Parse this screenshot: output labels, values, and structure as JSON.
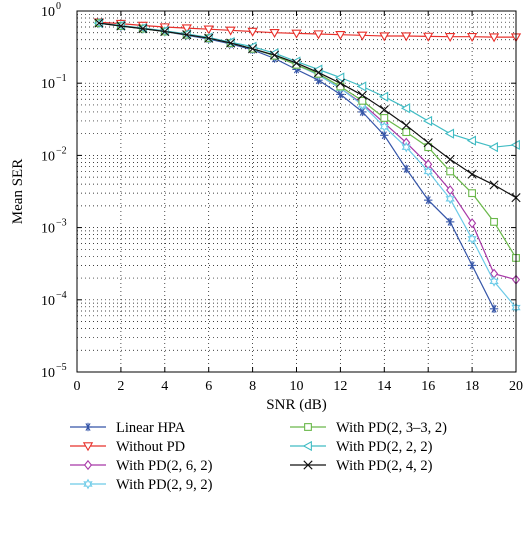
{
  "chart_data": {
    "type": "line",
    "title": "",
    "xlabel": "SNR (dB)",
    "ylabel": "Mean SER",
    "xlim": [
      0,
      20
    ],
    "ylim": [
      1e-05,
      1
    ],
    "yscale": "log",
    "grid": "dotted",
    "legend_placement": "below",
    "x_ticks": [
      0,
      2,
      4,
      6,
      8,
      10,
      12,
      14,
      16,
      18,
      20
    ],
    "y_ticks": [
      {
        "value": 1,
        "exp": "0"
      },
      {
        "value": 0.1,
        "exp": "−1"
      },
      {
        "value": 0.01,
        "exp": "−2"
      },
      {
        "value": 0.001,
        "exp": "−3"
      },
      {
        "value": 0.0001,
        "exp": "−4"
      },
      {
        "value": 1e-05,
        "exp": "−5"
      }
    ],
    "y_tick_base": "10",
    "series": [
      {
        "name": "Linear HPA",
        "color": "#3555a8",
        "marker": "star",
        "x": [
          1,
          2,
          3,
          4,
          5,
          6,
          7,
          8,
          9,
          10,
          11,
          12,
          13,
          14,
          15,
          16,
          17,
          18,
          19
        ],
        "y": [
          0.68,
          0.62,
          0.57,
          0.52,
          0.46,
          0.41,
          0.35,
          0.29,
          0.22,
          0.155,
          0.11,
          0.07,
          0.04,
          0.019,
          0.0065,
          0.0024,
          0.0012,
          0.0003,
          7.5e-05
        ]
      },
      {
        "name": "Without PD",
        "color": "#e8302b",
        "marker": "triangle-down",
        "x": [
          1,
          2,
          3,
          4,
          5,
          6,
          7,
          8,
          9,
          10,
          11,
          12,
          13,
          14,
          15,
          16,
          17,
          18,
          19,
          20
        ],
        "y": [
          0.7,
          0.67,
          0.63,
          0.6,
          0.58,
          0.56,
          0.54,
          0.52,
          0.5,
          0.49,
          0.48,
          0.47,
          0.46,
          0.45,
          0.45,
          0.445,
          0.44,
          0.44,
          0.435,
          0.435
        ]
      },
      {
        "name": "With PD(2, 6, 2)",
        "color": "#a838a8",
        "marker": "diamond",
        "x": [
          1,
          2,
          3,
          4,
          5,
          6,
          7,
          8,
          9,
          10,
          11,
          12,
          13,
          14,
          15,
          16,
          17,
          18,
          19,
          20
        ],
        "y": [
          0.68,
          0.62,
          0.57,
          0.52,
          0.47,
          0.42,
          0.36,
          0.3,
          0.24,
          0.18,
          0.13,
          0.085,
          0.052,
          0.028,
          0.015,
          0.0075,
          0.0033,
          0.00115,
          0.00023,
          0.00019
        ]
      },
      {
        "name": "With PD(2, 9, 2)",
        "color": "#6ccbe8",
        "marker": "hexagram",
        "x": [
          1,
          2,
          3,
          4,
          5,
          6,
          7,
          8,
          9,
          10,
          11,
          12,
          13,
          14,
          15,
          16,
          17,
          18,
          19,
          20
        ],
        "y": [
          0.68,
          0.62,
          0.57,
          0.52,
          0.47,
          0.42,
          0.36,
          0.3,
          0.24,
          0.18,
          0.13,
          0.085,
          0.05,
          0.025,
          0.013,
          0.006,
          0.0025,
          0.0007,
          0.00018,
          7.8e-05
        ]
      },
      {
        "name": "With PD(2, 3–3, 2)",
        "color": "#6ab84a",
        "marker": "square",
        "x": [
          1,
          2,
          3,
          4,
          5,
          6,
          7,
          8,
          9,
          10,
          11,
          12,
          13,
          14,
          15,
          16,
          17,
          18,
          19,
          20
        ],
        "y": [
          0.68,
          0.62,
          0.57,
          0.52,
          0.47,
          0.42,
          0.36,
          0.3,
          0.24,
          0.18,
          0.135,
          0.09,
          0.057,
          0.033,
          0.021,
          0.013,
          0.006,
          0.003,
          0.0012,
          0.00038
        ]
      },
      {
        "name": "With PD(2, 2, 2)",
        "color": "#40bcc4",
        "marker": "triangle-left",
        "x": [
          1,
          2,
          3,
          4,
          5,
          6,
          7,
          8,
          9,
          10,
          11,
          12,
          13,
          14,
          15,
          16,
          17,
          18,
          19,
          20
        ],
        "y": [
          0.68,
          0.63,
          0.58,
          0.53,
          0.48,
          0.43,
          0.37,
          0.32,
          0.26,
          0.2,
          0.155,
          0.12,
          0.09,
          0.065,
          0.045,
          0.03,
          0.02,
          0.016,
          0.013,
          0.014
        ]
      },
      {
        "name": "With PD(2, 4, 2)",
        "color": "#111111",
        "marker": "x",
        "x": [
          1,
          2,
          3,
          4,
          5,
          6,
          7,
          8,
          9,
          10,
          11,
          12,
          13,
          14,
          15,
          16,
          17,
          18,
          19,
          20
        ],
        "y": [
          0.68,
          0.62,
          0.57,
          0.52,
          0.47,
          0.42,
          0.36,
          0.3,
          0.245,
          0.19,
          0.14,
          0.1,
          0.068,
          0.043,
          0.026,
          0.015,
          0.0088,
          0.0055,
          0.0039,
          0.0026
        ]
      }
    ],
    "legend_layout": [
      {
        "series": 0,
        "column": 0,
        "row": 0
      },
      {
        "series": 1,
        "column": 0,
        "row": 1
      },
      {
        "series": 2,
        "column": 0,
        "row": 2
      },
      {
        "series": 3,
        "column": 0,
        "row": 3
      },
      {
        "series": 4,
        "column": 1,
        "row": 0
      },
      {
        "series": 5,
        "column": 1,
        "row": 1
      },
      {
        "series": 6,
        "column": 1,
        "row": 2
      }
    ]
  }
}
